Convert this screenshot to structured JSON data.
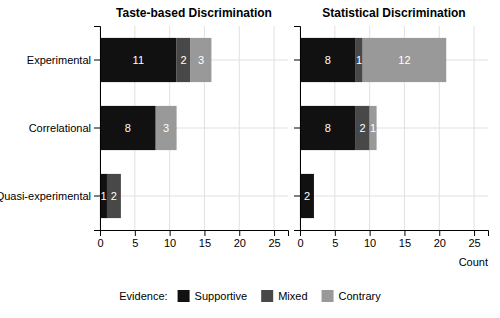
{
  "chart_data": [
    {
      "type": "bar",
      "title": "Taste-based Discrimination",
      "categories": [
        "Experimental",
        "Correlational",
        "Quasi-experimental"
      ],
      "series": [
        {
          "name": "Supportive",
          "color": "#111111",
          "values": [
            11,
            8,
            1
          ]
        },
        {
          "name": "Mixed",
          "color": "#484848",
          "values": [
            2,
            0,
            2
          ]
        },
        {
          "name": "Contrary",
          "color": "#999999",
          "values": [
            3,
            3,
            0
          ]
        }
      ],
      "xlim": [
        0,
        27
      ],
      "xticks": [
        0,
        5,
        10,
        15,
        20,
        25
      ],
      "orientation": "horizontal",
      "stacked": true,
      "data_labels": true,
      "grid": true,
      "legend": "bottom",
      "legend_title": "Evidence:"
    },
    {
      "type": "bar",
      "title": "Statistical Discrimination",
      "categories": [
        "Experimental",
        "Correlational",
        "Quasi-experimental"
      ],
      "series": [
        {
          "name": "Supportive",
          "color": "#111111",
          "values": [
            8,
            8,
            2
          ]
        },
        {
          "name": "Mixed",
          "color": "#484848",
          "values": [
            1,
            2,
            0
          ]
        },
        {
          "name": "Contrary",
          "color": "#999999",
          "values": [
            12,
            1,
            0
          ]
        }
      ],
      "xlim": [
        0,
        27
      ],
      "xticks": [
        0,
        5,
        10,
        15,
        20,
        25
      ],
      "xlabel": "Count",
      "orientation": "horizontal",
      "stacked": true,
      "data_labels": true,
      "grid": true,
      "tick_labels": "x"
    }
  ]
}
